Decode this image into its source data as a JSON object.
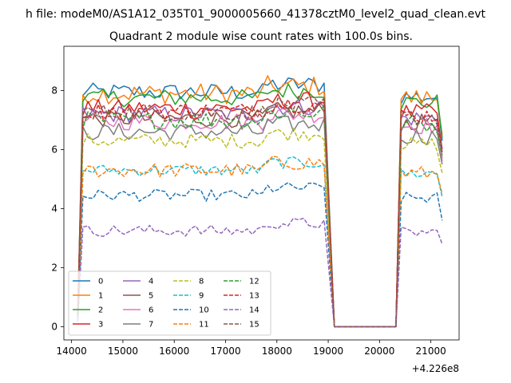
{
  "chart_data": {
    "type": "line",
    "suptitle": "h file: modeM0/AS1A12_035T01_9000005660_41378cztM0_level2_quad_clean.evt",
    "title": "Quadrant 2 module wise count rates with 100.0s bins.",
    "xlabel": "",
    "ylabel": "",
    "x_offset_label": "+4.226e8",
    "xlim": [
      13850,
      21550
    ],
    "ylim": [
      -0.45,
      9.5
    ],
    "x_ticks": [
      14000,
      15000,
      16000,
      17000,
      18000,
      19000,
      20000,
      21000
    ],
    "x_tick_labels": [
      "14000",
      "15000",
      "16000",
      "17000",
      "18000",
      "19000",
      "20000",
      "21000"
    ],
    "y_ticks": [
      0,
      2,
      4,
      6,
      8
    ],
    "y_tick_labels": [
      "0",
      "2",
      "4",
      "6",
      "8"
    ],
    "grid": false,
    "legend": {
      "placement": "lower-left",
      "columns": 4
    },
    "x_segments": [
      {
        "start": 14120,
        "end": 18920,
        "step": 100
      },
      {
        "start": 19120,
        "end": 20320,
        "step": 100
      },
      {
        "start": 20420,
        "end": 21220,
        "step": 100
      }
    ],
    "series": [
      {
        "name": "0",
        "color": "#1f77b4",
        "style": "solid",
        "base": 7.95,
        "noise": 0.3,
        "tail": 6.3
      },
      {
        "name": "1",
        "color": "#ff7f0e",
        "style": "solid",
        "base": 7.9,
        "noise": 0.35,
        "tail": 6.5
      },
      {
        "name": "2",
        "color": "#2ca02c",
        "style": "solid",
        "base": 7.75,
        "noise": 0.3,
        "tail": 6.4
      },
      {
        "name": "3",
        "color": "#d62728",
        "style": "solid",
        "base": 7.4,
        "noise": 0.3,
        "tail": 6.0
      },
      {
        "name": "4",
        "color": "#9467bd",
        "style": "solid",
        "base": 7.2,
        "noise": 0.3,
        "tail": 5.9
      },
      {
        "name": "5",
        "color": "#8c564b",
        "style": "solid",
        "base": 7.05,
        "noise": 0.3,
        "tail": 5.7
      },
      {
        "name": "6",
        "color": "#e377c2",
        "style": "solid",
        "base": 6.95,
        "noise": 0.3,
        "tail": 5.6
      },
      {
        "name": "7",
        "color": "#7f7f7f",
        "style": "solid",
        "base": 6.6,
        "noise": 0.3,
        "tail": 5.5
      },
      {
        "name": "8",
        "color": "#bcbd22",
        "style": "dashed",
        "base": 6.3,
        "noise": 0.25,
        "tail": 5.2
      },
      {
        "name": "9",
        "color": "#17becf",
        "style": "dashed",
        "base": 5.3,
        "noise": 0.2,
        "tail": 4.4
      },
      {
        "name": "10",
        "color": "#1f77b4",
        "style": "dashed",
        "base": 4.45,
        "noise": 0.2,
        "tail": 3.6
      },
      {
        "name": "11",
        "color": "#ff7f0e",
        "style": "dashed",
        "base": 5.3,
        "noise": 0.25,
        "tail": 4.5
      },
      {
        "name": "12",
        "color": "#2ca02c",
        "style": "dashed",
        "base": 7.0,
        "noise": 0.3,
        "tail": 5.8
      },
      {
        "name": "13",
        "color": "#d62728",
        "style": "dashed",
        "base": 7.3,
        "noise": 0.3,
        "tail": 6.0
      },
      {
        "name": "14",
        "color": "#9467bd",
        "style": "dashed",
        "base": 3.25,
        "noise": 0.2,
        "tail": 2.8
      },
      {
        "name": "15",
        "color": "#8c564b",
        "style": "dashed",
        "base": 7.25,
        "noise": 0.3,
        "tail": 5.9
      }
    ]
  }
}
